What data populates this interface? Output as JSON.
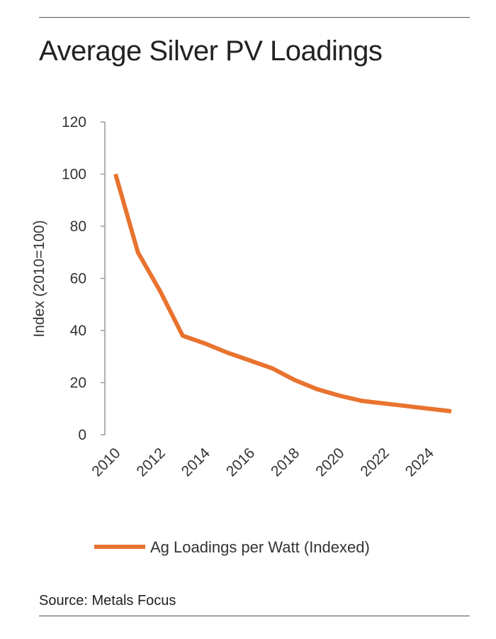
{
  "chart_data": {
    "type": "line",
    "title": "Average Silver PV Loadings",
    "xlabel": "",
    "ylabel": "Index (2010=100)",
    "ylim": [
      0,
      120
    ],
    "yticks": [
      "0",
      "20",
      "40",
      "60",
      "80",
      "100",
      "120"
    ],
    "xticks": [
      "2010",
      "2012",
      "2014",
      "2016",
      "2018",
      "2020",
      "2022",
      "2024"
    ],
    "x": [
      2010,
      2011,
      2012,
      2013,
      2014,
      2015,
      2016,
      2017,
      2018,
      2019,
      2020,
      2021,
      2022,
      2023,
      2024,
      2025
    ],
    "series": [
      {
        "name": "Ag Loadings per Watt (Indexed)",
        "color": "#e8732f",
        "values": [
          100,
          70,
          55,
          38,
          35,
          31.5,
          28.5,
          25.5,
          21,
          17.5,
          15,
          13,
          12,
          11,
          10,
          9
        ]
      }
    ],
    "grid": false,
    "legend": "bottom"
  },
  "source": "Source: Metals Focus"
}
